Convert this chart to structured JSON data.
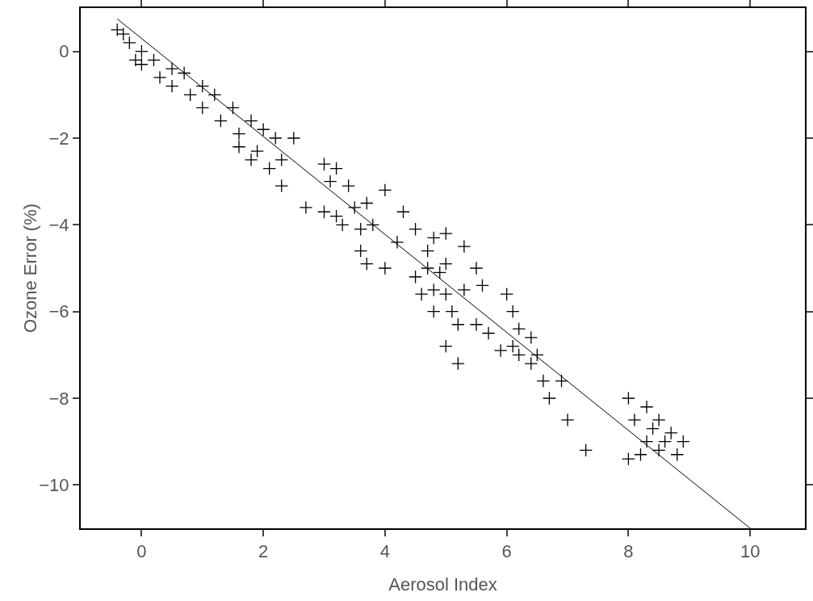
{
  "chart_data": {
    "type": "scatter",
    "xlabel": "Aerosol Index",
    "ylabel": "Ozone Error (%)",
    "xlim": [
      -1,
      10.9
    ],
    "ylim": [
      -11,
      1
    ],
    "xticks": [
      0,
      2,
      4,
      6,
      8,
      10
    ],
    "yticks": [
      -10,
      -8,
      -6,
      -4,
      -2,
      0
    ],
    "grid": false,
    "legend": false,
    "series": [
      {
        "marker": "cross",
        "color": "#000000",
        "x": [
          -0.4,
          -0.3,
          -0.2,
          -0.1,
          0,
          0,
          0.2,
          0.3,
          0.5,
          0.5,
          0.7,
          0.8,
          1.0,
          1.0,
          1.2,
          1.3,
          1.5,
          1.6,
          1.6,
          1.8,
          1.8,
          1.9,
          2.0,
          2.1,
          2.2,
          2.3,
          2.3,
          2.5,
          2.7,
          3.0,
          3.0,
          3.1,
          3.2,
          3.2,
          3.3,
          3.4,
          3.5,
          3.6,
          3.6,
          3.7,
          3.7,
          3.8,
          4.0,
          4.0,
          4.2,
          4.3,
          4.5,
          4.5,
          4.6,
          4.7,
          4.7,
          4.8,
          4.8,
          4.8,
          4.9,
          5.0,
          5.0,
          5.0,
          5.0,
          5.1,
          5.2,
          5.2,
          5.3,
          5.3,
          5.5,
          5.5,
          5.6,
          5.7,
          5.9,
          6.0,
          6.1,
          6.1,
          6.2,
          6.2,
          6.4,
          6.4,
          6.5,
          6.6,
          6.7,
          6.9,
          7.0,
          7.3,
          8.0,
          8.0,
          8.1,
          8.2,
          8.3,
          8.3,
          8.4,
          8.5,
          8.5,
          8.6,
          8.7,
          8.8,
          8.9
        ],
        "values": [
          0.5,
          0.4,
          0.2,
          -0.2,
          0,
          -0.3,
          -0.2,
          -0.6,
          -0.4,
          -0.8,
          -0.5,
          -1.0,
          -0.8,
          -1.3,
          -1.0,
          -1.6,
          -1.3,
          -1.9,
          -2.2,
          -1.6,
          -2.5,
          -2.3,
          -1.8,
          -2.7,
          -2.0,
          -2.5,
          -3.1,
          -2.0,
          -3.6,
          -2.6,
          -3.7,
          -3.0,
          -2.7,
          -3.8,
          -4.0,
          -3.1,
          -3.6,
          -4.1,
          -4.6,
          -3.5,
          -4.9,
          -4.0,
          -5.0,
          -3.2,
          -4.4,
          -3.7,
          -4.1,
          -5.2,
          -5.6,
          -4.6,
          -5.0,
          -5.5,
          -6.0,
          -4.3,
          -5.1,
          -5.6,
          -6.8,
          -4.2,
          -4.9,
          -6.0,
          -6.3,
          -7.2,
          -4.5,
          -5.5,
          -5.0,
          -6.3,
          -5.4,
          -6.5,
          -6.9,
          -5.6,
          -6.0,
          -6.8,
          -6.4,
          -7.0,
          -6.6,
          -7.2,
          -7.0,
          -7.6,
          -8.0,
          -7.6,
          -8.5,
          -9.2,
          -8.0,
          -9.4,
          -8.5,
          -9.3,
          -8.2,
          -9.0,
          -8.7,
          -8.5,
          -9.2,
          -9.0,
          -8.8,
          -9.3,
          -9.0
        ]
      },
      {
        "type": "line",
        "color": "#000000",
        "x": [
          -0.4,
          10
        ],
        "values": [
          0.75,
          -11
        ]
      }
    ]
  }
}
